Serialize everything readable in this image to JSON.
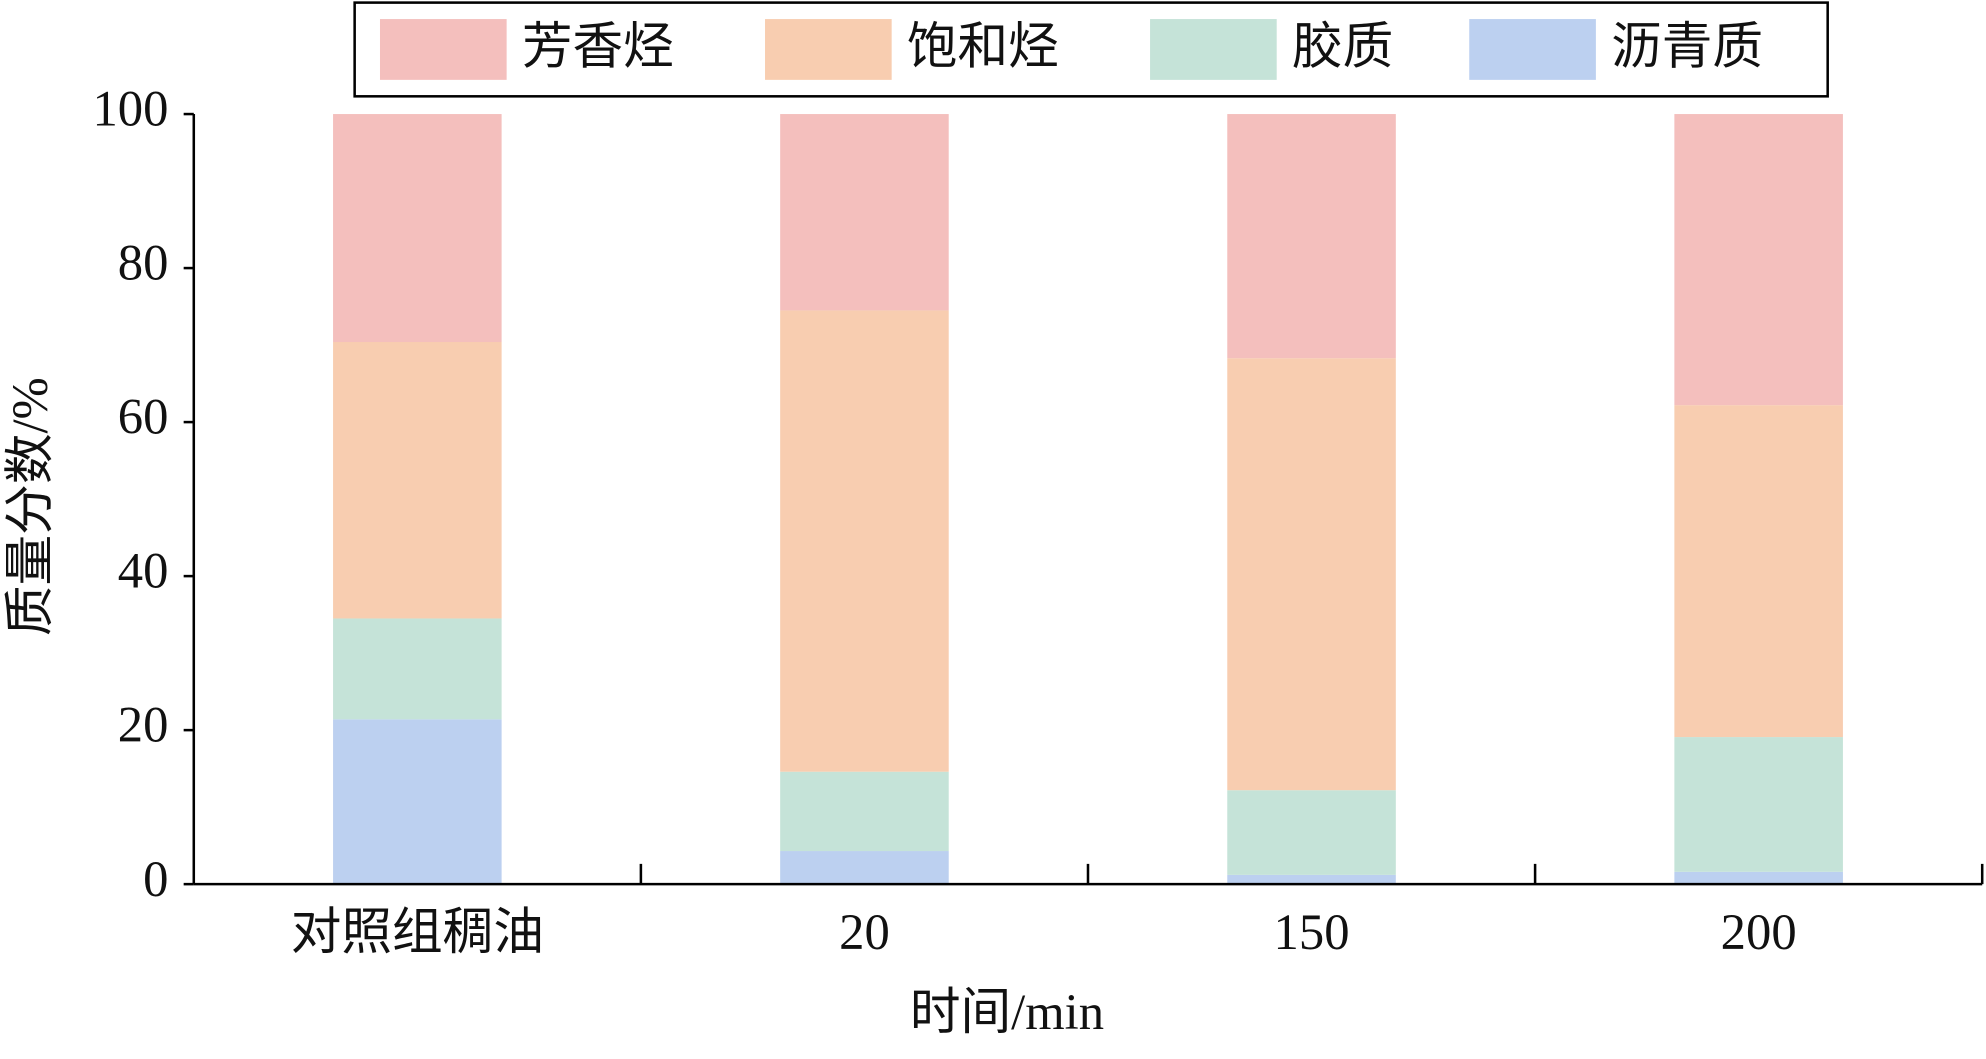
{
  "chart_data": {
    "type": "stacked-bar",
    "x_label": "时间/min",
    "y_label": "质量分数/%",
    "categories": [
      "对照组稠油",
      "20",
      "150",
      "200"
    ],
    "series": [
      {
        "name": "芳香烃",
        "color": "#f4bfbd",
        "values": [
          29.6,
          25.5,
          31.7,
          37.8
        ]
      },
      {
        "name": "饱和烃",
        "color": "#f8cdb0",
        "values": [
          35.9,
          59.9,
          56.1,
          43.1
        ]
      },
      {
        "name": "胶质",
        "color": "#c5e3d8",
        "values": [
          13.1,
          10.3,
          11.0,
          17.5
        ]
      },
      {
        "name": "沥青质",
        "color": "#bcd0f0",
        "values": [
          21.4,
          4.3,
          1.2,
          1.6
        ]
      }
    ],
    "ylim": [
      0,
      100
    ],
    "yticks": [
      0,
      20,
      40,
      60,
      80,
      100
    ]
  }
}
